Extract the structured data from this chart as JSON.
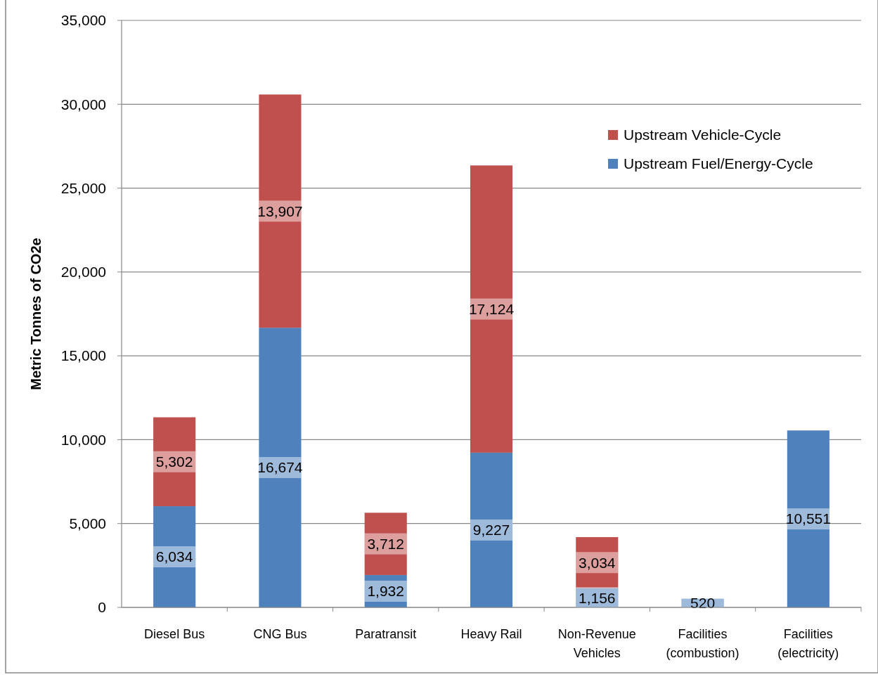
{
  "chart_data": {
    "type": "bar",
    "stacked": true,
    "ylabel": "Metric Tonnes of CO2e",
    "categories": [
      "Diesel Bus",
      "CNG Bus",
      "Paratransit",
      "Heavy Rail",
      "Non-Revenue Vehicles",
      "Facilities (combustion)",
      "Facilities (electricity)"
    ],
    "series": [
      {
        "name": "Upstream Fuel/Energy-Cycle",
        "color": "#4f81bd",
        "values": [
          6034,
          16674,
          1932,
          9227,
          1156,
          520,
          10551
        ],
        "value_labels": [
          "6,034",
          "16,674",
          "1,932",
          "9,227",
          "1,156",
          "520",
          "10,551"
        ]
      },
      {
        "name": "Upstream Vehicle-Cycle",
        "color": "#c0504d",
        "values": [
          5302,
          13907,
          3712,
          17124,
          3034,
          null,
          null
        ],
        "value_labels": [
          "5,302",
          "13,907",
          "3,712",
          "17,124",
          "3,034",
          null,
          null
        ]
      }
    ],
    "ylim": [
      0,
      35000
    ],
    "yticks": [
      0,
      {
        "value": 5000,
        "label": "5,000"
      },
      {
        "value": 10000,
        "label": "10,000"
      },
      {
        "value": 15000,
        "label": "15,000"
      },
      {
        "value": 20000,
        "label": "20,000"
      },
      {
        "value": 25000,
        "label": "25,000"
      },
      {
        "value": 30000,
        "label": "30,000"
      },
      {
        "value": 35000,
        "label": "35,000"
      }
    ],
    "grid": "y",
    "legend": "top right"
  }
}
